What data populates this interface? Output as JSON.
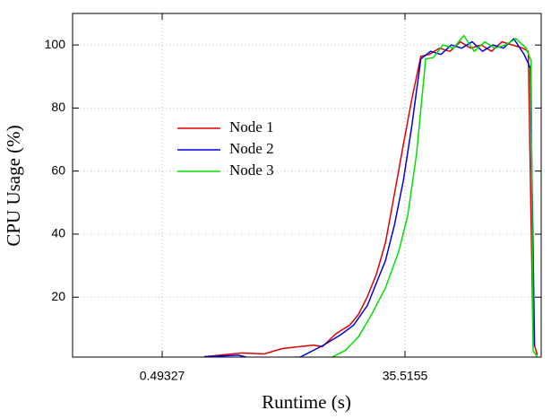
{
  "chart_data": {
    "type": "line",
    "x_label": "Runtime (s)",
    "y_label": "CPU Usage (%)",
    "xlim": [
      -12.43,
      55.16
    ],
    "ylim": [
      1,
      110
    ],
    "xticks": [
      0.49327,
      35.5155
    ],
    "yticks": [
      20,
      40,
      60,
      80,
      100
    ],
    "grid": true,
    "legend": "upper left",
    "series": [
      {
        "name": "Node 1",
        "color": "#e00000",
        "x": [
          6.56,
          12.0,
          15.2,
          17.8,
          22.3,
          23.6,
          25.6,
          27.5,
          28.8,
          30.1,
          31.4,
          32.7,
          34.0,
          35.3,
          36.5,
          37.8,
          39,
          40.5,
          42,
          43.5,
          45,
          46.5,
          48,
          49.5,
          51,
          52.5,
          53.3,
          54.0,
          54.6
        ],
        "values": [
          1.1,
          2.3,
          2.0,
          3.7,
          4.8,
          4.3,
          8.5,
          11.1,
          14.5,
          20.2,
          27.3,
          37.3,
          52.9,
          68.6,
          82.8,
          96.4,
          97,
          99,
          98,
          101,
          99,
          100,
          98,
          101,
          100,
          99,
          98,
          6,
          1.7
        ]
      },
      {
        "name": "Node 2",
        "color": "#0000e0",
        "x": [
          6.56,
          11.5,
          13.3,
          20.4,
          23.6,
          26.2,
          28.1,
          30.1,
          31.4,
          32.7,
          34.0,
          35.3,
          36.5,
          37.8,
          39.2,
          40.7,
          42.2,
          43.7,
          45.2,
          46.7,
          48.2,
          49.7,
          51.2,
          52.7,
          53.6,
          54.2
        ],
        "values": [
          1.1,
          1.6,
          0.6,
          1.0,
          4.6,
          8,
          11.1,
          17.4,
          24.5,
          31.6,
          43,
          57.2,
          74.3,
          95.6,
          98,
          97,
          100,
          99,
          101,
          98,
          100,
          99,
          102,
          97,
          92.7,
          4.6
        ]
      },
      {
        "name": "Node 3",
        "color": "#00e000",
        "x": [
          24.9,
          26.9,
          28.8,
          30.7,
          32.7,
          34.6,
          35.9,
          37.2,
          38.5,
          39.6,
          41,
          42.5,
          44,
          45.5,
          47,
          48.5,
          50,
          51.5,
          53,
          53.7,
          54.0,
          54.6
        ],
        "values": [
          0.9,
          3.1,
          7.4,
          14.5,
          23,
          34.4,
          45.8,
          65.7,
          95.6,
          96,
          100,
          99,
          103,
          98,
          101,
          99,
          100,
          102,
          99,
          95,
          3.1,
          1
        ]
      }
    ]
  }
}
